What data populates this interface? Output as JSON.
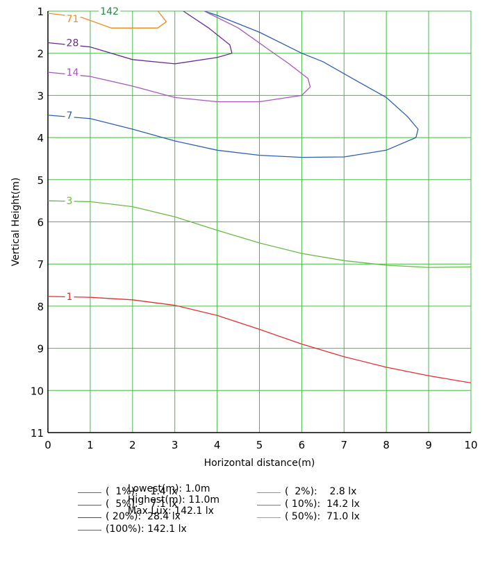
{
  "chart_data": {
    "type": "line",
    "title": "",
    "xlabel": "Horizontal distance(m)",
    "ylabel": "Vertical Height(m)",
    "xlim": [
      0,
      10
    ],
    "ylim": [
      1,
      11
    ],
    "y_inverted": true,
    "grid": true,
    "grid_color": "#44bb44",
    "x_ticks": [
      "0",
      "1",
      "2",
      "3",
      "4",
      "5",
      "6",
      "7",
      "8",
      "9",
      "10"
    ],
    "y_ticks": [
      "1",
      "2",
      "3",
      "4",
      "5",
      "6",
      "7",
      "8",
      "9",
      "10",
      "11"
    ],
    "series": [
      {
        "label": "1",
        "color": "#e03030",
        "points": [
          [
            0,
            7.77
          ],
          [
            1,
            7.79
          ],
          [
            2,
            7.85
          ],
          [
            3,
            7.98
          ],
          [
            4,
            8.22
          ],
          [
            5,
            8.55
          ],
          [
            6,
            8.9
          ],
          [
            7,
            9.2
          ],
          [
            8,
            9.45
          ],
          [
            9,
            9.65
          ],
          [
            10,
            9.82
          ]
        ]
      },
      {
        "label": "3",
        "color": "#66bb44",
        "points": [
          [
            0,
            5.5
          ],
          [
            1,
            5.52
          ],
          [
            2,
            5.64
          ],
          [
            3,
            5.88
          ],
          [
            4,
            6.2
          ],
          [
            5,
            6.5
          ],
          [
            6,
            6.75
          ],
          [
            7,
            6.92
          ],
          [
            8,
            7.03
          ],
          [
            9,
            7.08
          ],
          [
            10,
            7.07
          ]
        ]
      },
      {
        "label": "7",
        "color": "#2a60b0",
        "points": [
          [
            0,
            3.47
          ],
          [
            1,
            3.55
          ],
          [
            2,
            3.8
          ],
          [
            3,
            4.08
          ],
          [
            4,
            4.3
          ],
          [
            5,
            4.42
          ],
          [
            6,
            4.47
          ],
          [
            7,
            4.46
          ],
          [
            8,
            4.3
          ],
          [
            8.7,
            4.0
          ],
          [
            8.75,
            3.8
          ],
          [
            8.5,
            3.5
          ],
          [
            8,
            3.05
          ],
          [
            7.2,
            2.6
          ],
          [
            6.5,
            2.2
          ],
          [
            6,
            2.0
          ],
          [
            5,
            1.5
          ],
          [
            4,
            1.1
          ],
          [
            3.7,
            1.0
          ]
        ]
      },
      {
        "label": "14",
        "color": "#a855c0",
        "points": [
          [
            0,
            2.45
          ],
          [
            1,
            2.55
          ],
          [
            2,
            2.78
          ],
          [
            3,
            3.05
          ],
          [
            4,
            3.15
          ],
          [
            5,
            3.15
          ],
          [
            6,
            3.0
          ],
          [
            6.2,
            2.8
          ],
          [
            6.15,
            2.6
          ],
          [
            5.7,
            2.25
          ],
          [
            5.2,
            1.9
          ],
          [
            4.5,
            1.4
          ],
          [
            3.7,
            1.0
          ]
        ]
      },
      {
        "label": "28",
        "color": "#6a2a90",
        "points": [
          [
            0,
            1.75
          ],
          [
            1,
            1.85
          ],
          [
            2,
            2.15
          ],
          [
            3,
            2.25
          ],
          [
            4,
            2.1
          ],
          [
            4.35,
            2.0
          ],
          [
            4.3,
            1.8
          ],
          [
            3.8,
            1.4
          ],
          [
            3.2,
            1.0
          ]
        ]
      },
      {
        "label": "71",
        "color": "#ee8a20",
        "points": [
          [
            0,
            1.05
          ],
          [
            0.8,
            1.15
          ],
          [
            1.5,
            1.4
          ],
          [
            2.6,
            1.4
          ],
          [
            2.8,
            1.25
          ],
          [
            2.6,
            1.0
          ]
        ]
      },
      {
        "label": "142",
        "color": "#1f8a40",
        "points": []
      }
    ],
    "summary": {
      "lowest": "Lowest(m): 1.0m",
      "highest": "Highest(m): 11.0m",
      "max_lux": "Max Lux: 142.1 lx"
    },
    "legend": [
      {
        "text": "(  1%):    1.4 lx",
        "color": "#e03030"
      },
      {
        "text": "(  2%):    2.8 lx",
        "color": "#66bb44"
      },
      {
        "text": "(  5%):    7.1 lx",
        "color": "#2a60b0"
      },
      {
        "text": "( 10%):  14.2 lx",
        "color": "#a855c0"
      },
      {
        "text": "( 20%):  28.4 lx",
        "color": "#6a2a90"
      },
      {
        "text": "( 50%):  71.0 lx",
        "color": "#ee8a20"
      },
      {
        "text": "(100%): 142.1 lx",
        "color": "#1f8a40"
      }
    ]
  }
}
